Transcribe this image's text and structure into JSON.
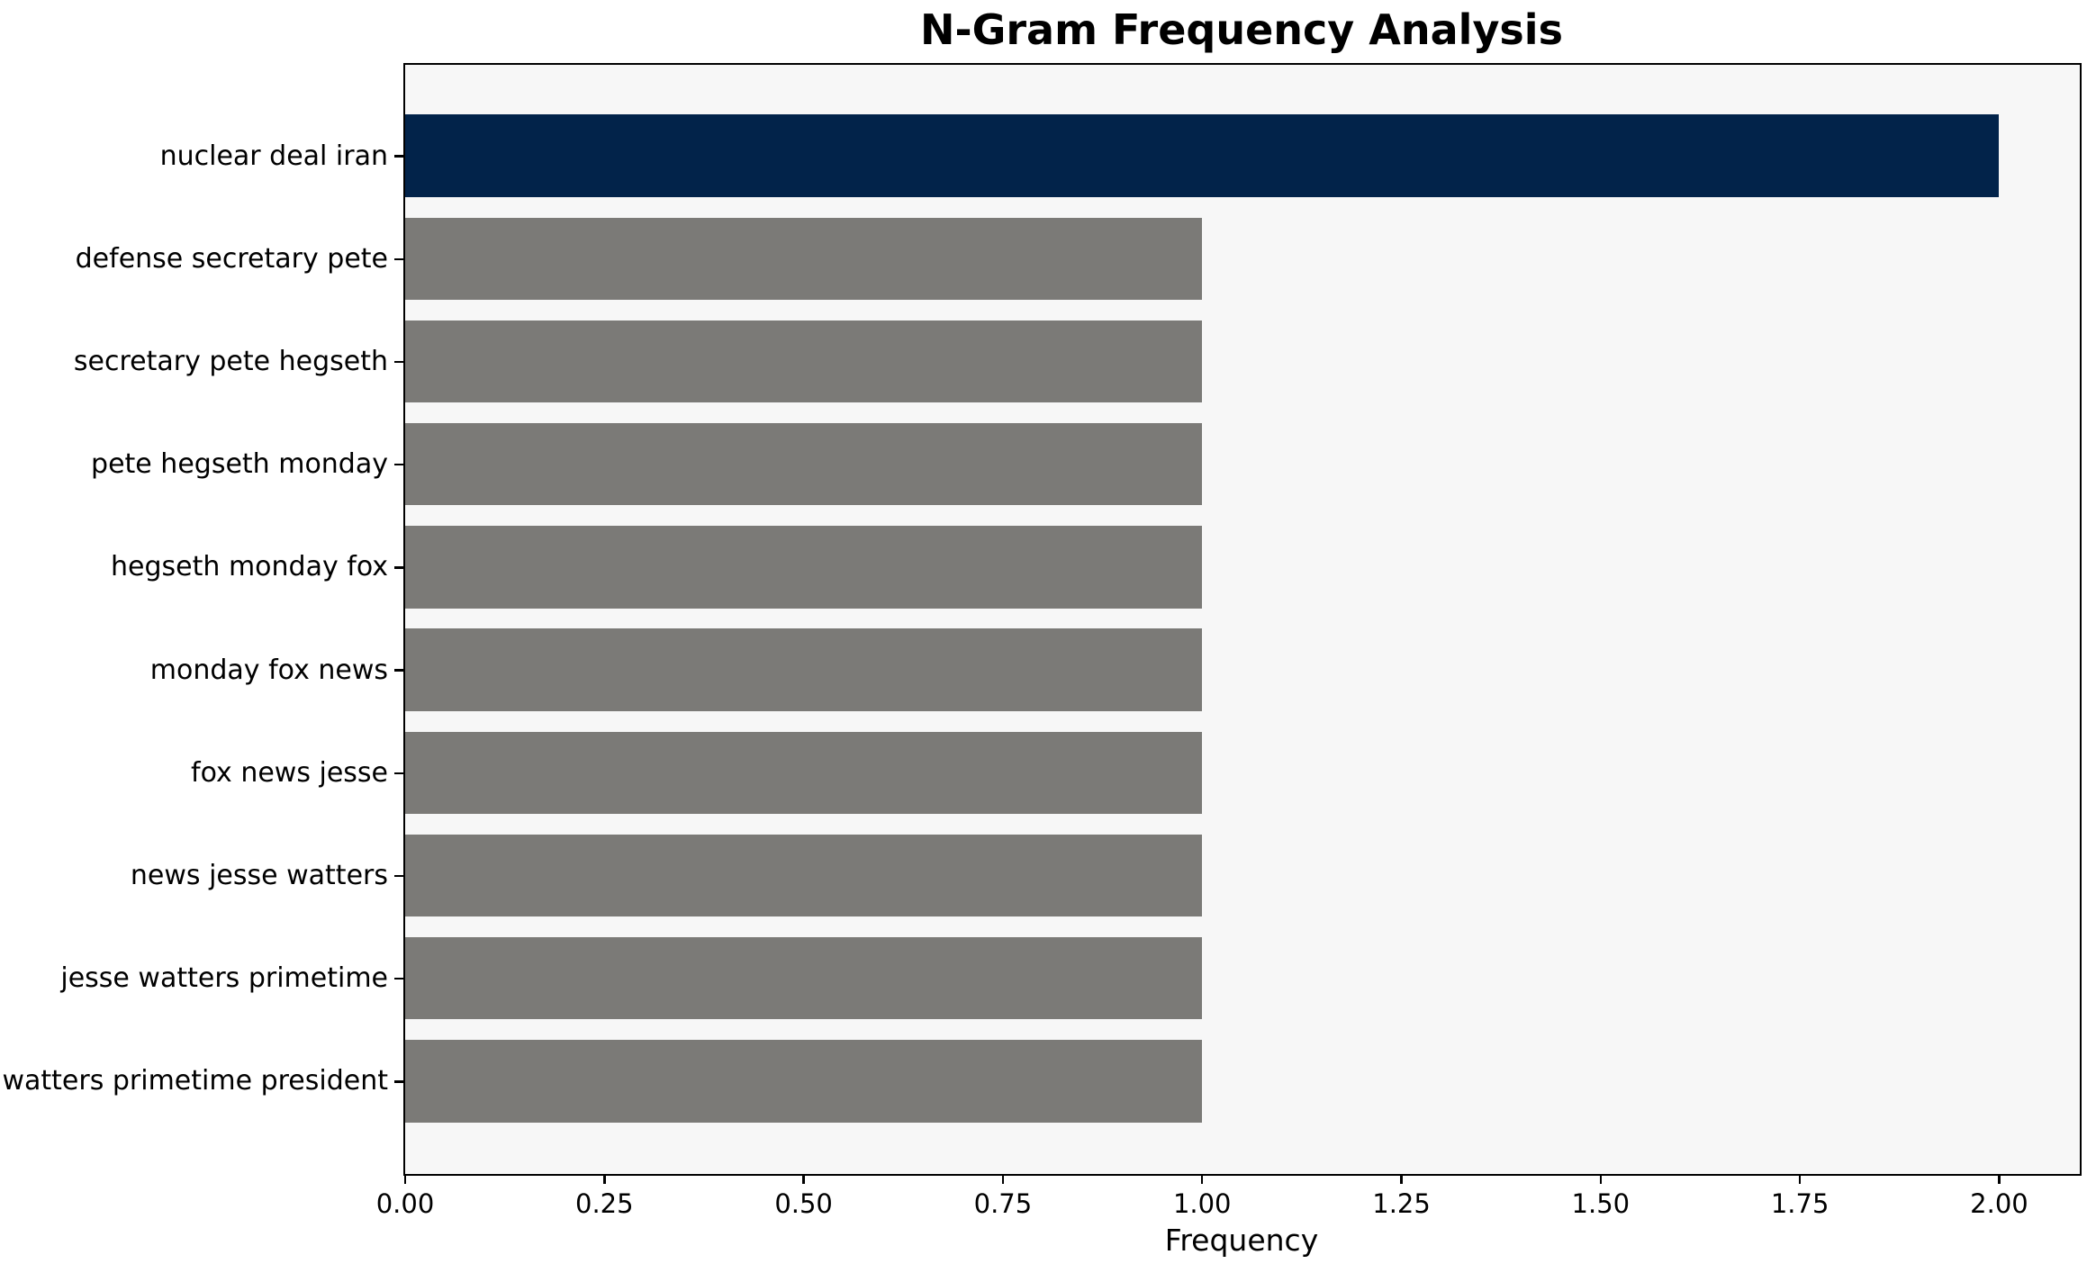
{
  "chart_data": {
    "type": "bar",
    "orientation": "horizontal",
    "title": "N-Gram Frequency Analysis",
    "xlabel": "Frequency",
    "ylabel": "",
    "categories": [
      "nuclear deal iran",
      "defense secretary pete",
      "secretary pete hegseth",
      "pete hegseth monday",
      "hegseth monday fox",
      "monday fox news",
      "fox news jesse",
      "news jesse watters",
      "jesse watters primetime",
      "watters primetime president"
    ],
    "values": [
      2,
      1,
      1,
      1,
      1,
      1,
      1,
      1,
      1,
      1
    ],
    "bar_colors": [
      "#02234a",
      "#7b7a77",
      "#7b7a77",
      "#7b7a77",
      "#7b7a77",
      "#7b7a77",
      "#7b7a77",
      "#7b7a77",
      "#7b7a77",
      "#7b7a77"
    ],
    "xlim": [
      0,
      2.1
    ],
    "xticks": [
      {
        "value": 0.0,
        "label": "0.00"
      },
      {
        "value": 0.25,
        "label": "0.25"
      },
      {
        "value": 0.5,
        "label": "0.50"
      },
      {
        "value": 0.75,
        "label": "0.75"
      },
      {
        "value": 1.0,
        "label": "1.00"
      },
      {
        "value": 1.25,
        "label": "1.25"
      },
      {
        "value": 1.5,
        "label": "1.50"
      },
      {
        "value": 1.75,
        "label": "1.75"
      },
      {
        "value": 2.0,
        "label": "2.00"
      }
    ],
    "grid": false,
    "legend": null,
    "colors": {
      "highlight_bar": "#02234a",
      "default_bar": "#7b7a77",
      "plot_background": "#f7f7f7",
      "figure_background": "#ffffff",
      "spine": "#000000",
      "text": "#000000"
    }
  }
}
